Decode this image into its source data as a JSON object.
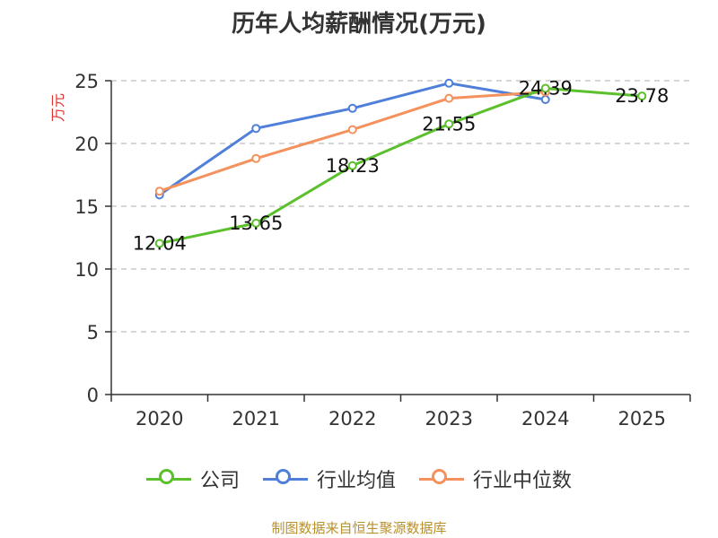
{
  "title": "历年人均薪酬情况(万元)",
  "source": "制图数据来自恒生聚源数据库",
  "chart_data": {
    "type": "line",
    "ylabel": "万元",
    "ylim": [
      0,
      25
    ],
    "yticks": [
      0,
      5,
      10,
      15,
      20,
      25
    ],
    "categories": [
      "2020",
      "2021",
      "2022",
      "2023",
      "2024",
      "2025"
    ],
    "grid": "horizontal dashed",
    "legend_position": "bottom",
    "series": [
      {
        "name": "公司",
        "color": "#5bc02b",
        "values": [
          12.04,
          13.65,
          18.23,
          21.55,
          24.39,
          23.78
        ],
        "labels": [
          "12.04",
          "13.65",
          "18.23",
          "21.55",
          "24.39",
          "23.78"
        ]
      },
      {
        "name": "行业均值",
        "color": "#4f7fd9",
        "values": [
          15.9,
          21.2,
          22.8,
          24.8,
          23.5,
          null
        ]
      },
      {
        "name": "行业中位数",
        "color": "#f4915c",
        "values": [
          16.2,
          18.8,
          21.1,
          23.6,
          24.1,
          null
        ]
      }
    ]
  }
}
